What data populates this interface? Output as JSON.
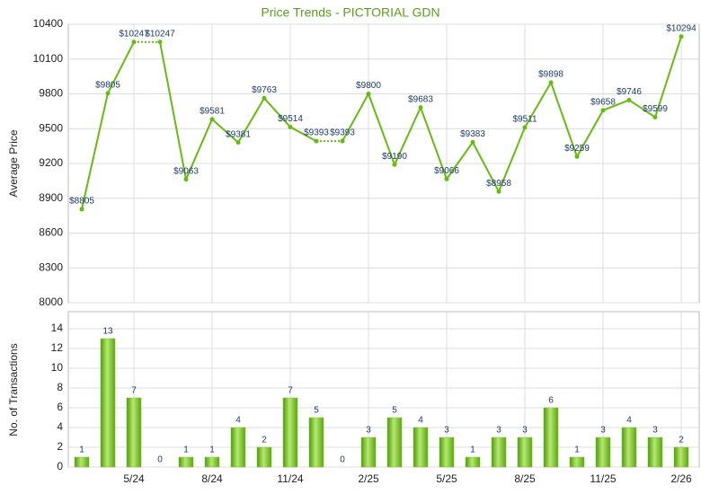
{
  "chart_data": [
    {
      "type": "line",
      "title": "Price Trends - PICTORIAL GDN",
      "ylabel": "Average Price",
      "color": "#66bb11",
      "values": [
        8805,
        9805,
        10247,
        10247,
        9063,
        9581,
        9381,
        9763,
        9514,
        9393,
        9393,
        9800,
        9190,
        9683,
        9066,
        9383,
        8958,
        9511,
        9898,
        9259,
        9658,
        9746,
        9599,
        10294
      ],
      "value_labels": [
        "$8805",
        "$9805",
        "$10247",
        "$10247",
        "$9063",
        "$9581",
        "$9381",
        "$9763",
        "$9514",
        "$9393",
        "$9393",
        "$9800",
        "$9190",
        "$9683",
        "$9066",
        "$9383",
        "$8958",
        "$9511",
        "$9898",
        "$9259",
        "$9658",
        "$9746",
        "$9599",
        "$10294"
      ],
      "ylim": [
        8000,
        10400
      ],
      "yticks": [
        8000,
        8300,
        8600,
        8900,
        9200,
        9500,
        9800,
        10100,
        10400
      ],
      "grid": true
    },
    {
      "type": "bar",
      "ylabel": "No. of Transactions",
      "color": "#7cc520",
      "categories": [
        null,
        null,
        "5/24",
        null,
        null,
        "8/24",
        null,
        null,
        "11/24",
        null,
        null,
        "2/25",
        null,
        null,
        "5/25",
        null,
        null,
        "8/25",
        null,
        null,
        "11/25",
        null,
        null,
        "2/26"
      ],
      "values": [
        1,
        13,
        7,
        0,
        1,
        1,
        4,
        2,
        7,
        5,
        0,
        3,
        5,
        4,
        3,
        1,
        3,
        3,
        6,
        1,
        3,
        4,
        3,
        2
      ],
      "ylim": [
        0,
        15
      ],
      "yticks": [
        0,
        2,
        4,
        6,
        8,
        10,
        12,
        14
      ],
      "grid": true
    }
  ]
}
